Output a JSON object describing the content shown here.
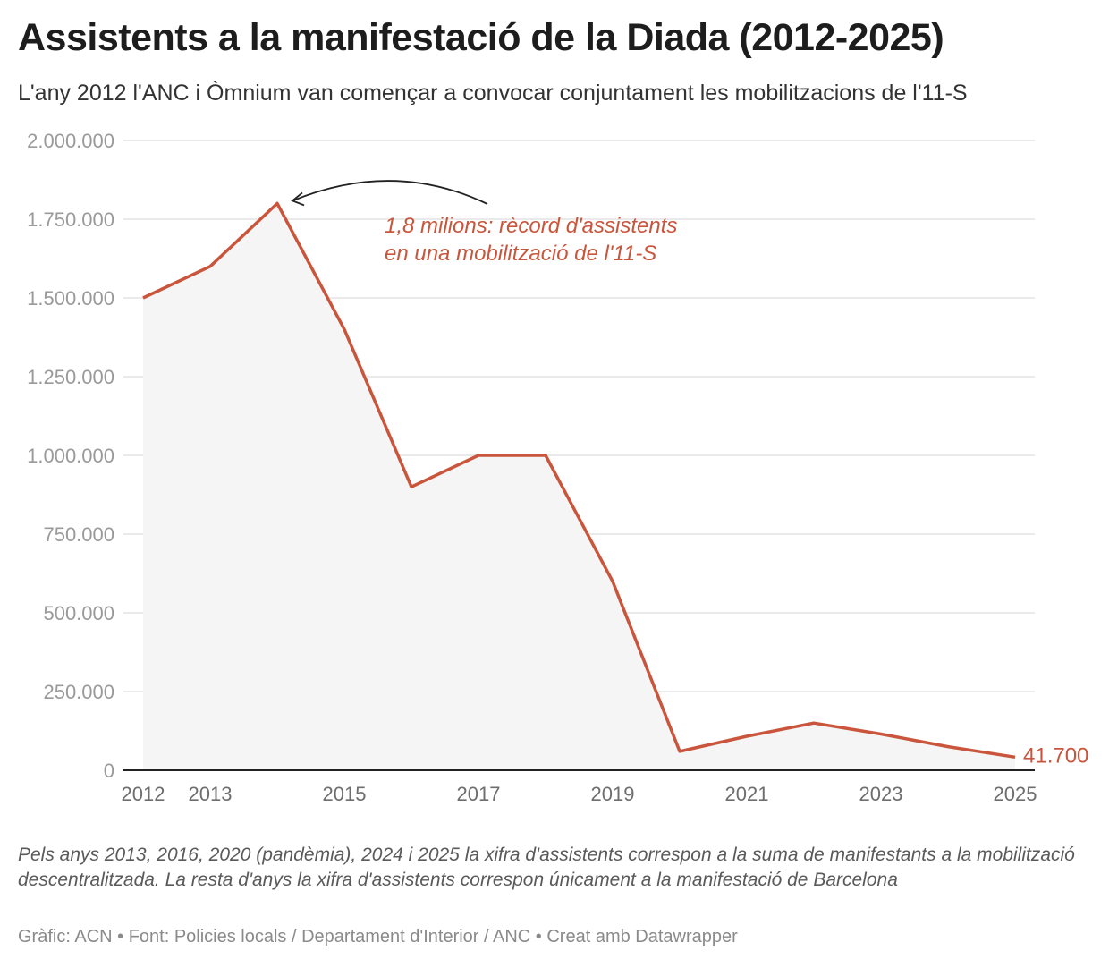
{
  "header": {
    "title": "Assistents a la manifestació de la Diada (2012-2025)",
    "subtitle": "L'any 2012 l'ANC i Òmnium van començar a convocar conjuntament les mobilitzacions de l'11-S"
  },
  "chart_data": {
    "type": "area",
    "title": "Assistents a la manifestació de la Diada (2012-2025)",
    "xlabel": "",
    "ylabel": "",
    "x": [
      2012,
      2013,
      2014,
      2015,
      2016,
      2017,
      2018,
      2019,
      2020,
      2021,
      2022,
      2023,
      2024,
      2025
    ],
    "series": [
      {
        "name": "Assistents",
        "values": [
          1500000,
          1600000,
          1800000,
          1400000,
          900000,
          1000000,
          1000000,
          600000,
          60000,
          108000,
          150000,
          115000,
          75000,
          41700
        ]
      }
    ],
    "ylim": [
      0,
      2000000
    ],
    "yticks": [
      0,
      250000,
      500000,
      750000,
      1000000,
      1250000,
      1500000,
      1750000,
      2000000
    ],
    "ytick_labels": [
      "0",
      "250.000",
      "500.000",
      "750.000",
      "1.000.000",
      "1.250.000",
      "1.500.000",
      "1.750.000",
      "2.000.000"
    ],
    "xticks": [
      2012,
      2013,
      2015,
      2017,
      2019,
      2021,
      2023,
      2025
    ],
    "xtick_labels": [
      "2012",
      "2013",
      "2015",
      "2017",
      "2019",
      "2021",
      "2023",
      "2025"
    ],
    "grid": true,
    "colors": {
      "line": "#c9563c",
      "fill": "#f5f5f5",
      "grid": "#e3e3e3",
      "axis": "#222222"
    },
    "annotation": {
      "lines": [
        "1,8 milions: rècord d'assistents",
        "en una mobilització de l'11-S"
      ],
      "target_x": 2014,
      "target_y": 1800000
    },
    "end_label": "41.700"
  },
  "footer": {
    "note": "Pels anys 2013, 2016, 2020 (pandèmia), 2024 i 2025 la xifra d'assistents correspon a la suma de manifestants a la mobilització descentralitzada. La resta d'anys la xifra d'assistents correspon únicament a la manifestació de Barcelona",
    "source": "Gràfic: ACN • Font: Policies locals / Departament d'Interior / ANC • Creat amb Datawrapper"
  }
}
